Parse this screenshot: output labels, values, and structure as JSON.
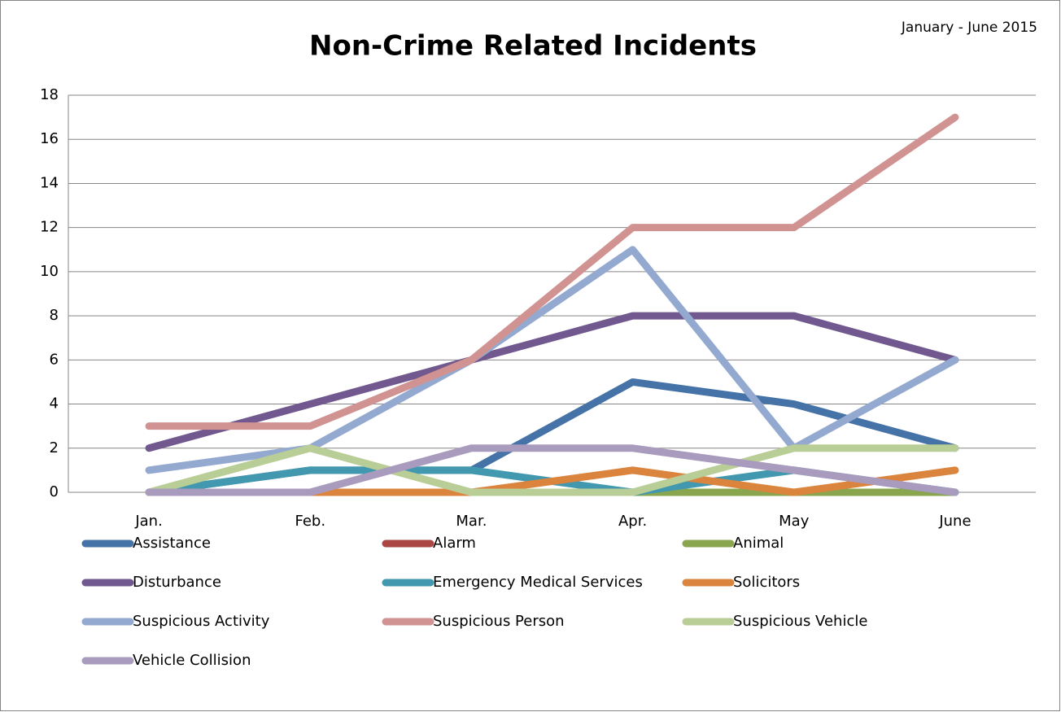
{
  "chart_data": {
    "type": "line",
    "title": "Non-Crime Related Incidents",
    "subtitle": "January - June 2015",
    "categories": [
      "Jan.",
      "Feb.",
      "Mar.",
      "Apr.",
      "May",
      "June"
    ],
    "ylim": [
      0,
      18
    ],
    "yticks": [
      0,
      2,
      4,
      6,
      8,
      10,
      12,
      14,
      16,
      18
    ],
    "grid": true,
    "series": [
      {
        "name": "Assistance",
        "color": "#4572a7",
        "values": [
          0,
          1,
          1,
          5,
          4,
          2
        ]
      },
      {
        "name": "Alarm",
        "color": "#aa4643",
        "values": [
          0,
          0,
          0,
          0,
          0,
          0
        ]
      },
      {
        "name": "Animal",
        "color": "#89a54e",
        "values": [
          0,
          0,
          0,
          0,
          0,
          0
        ]
      },
      {
        "name": "Disturbance",
        "color": "#71588f",
        "values": [
          2,
          4,
          6,
          8,
          8,
          6
        ]
      },
      {
        "name": "Emergency Medical Services",
        "color": "#4198af",
        "values": [
          0,
          1,
          1,
          0,
          1,
          0
        ]
      },
      {
        "name": "Solicitors",
        "color": "#db843d",
        "values": [
          0,
          0,
          0,
          1,
          0,
          1
        ]
      },
      {
        "name": "Suspicious Activity",
        "color": "#93a9cf",
        "values": [
          1,
          2,
          6,
          11,
          2,
          6
        ]
      },
      {
        "name": "Suspicious Person",
        "color": "#d19392",
        "values": [
          3,
          3,
          6,
          12,
          12,
          17
        ]
      },
      {
        "name": "Suspicious Vehicle",
        "color": "#b9cd96",
        "values": [
          0,
          2,
          0,
          0,
          2,
          2
        ]
      },
      {
        "name": "Vehicle Collision",
        "color": "#a99bbd",
        "values": [
          0,
          0,
          2,
          2,
          1,
          0
        ]
      }
    ]
  }
}
